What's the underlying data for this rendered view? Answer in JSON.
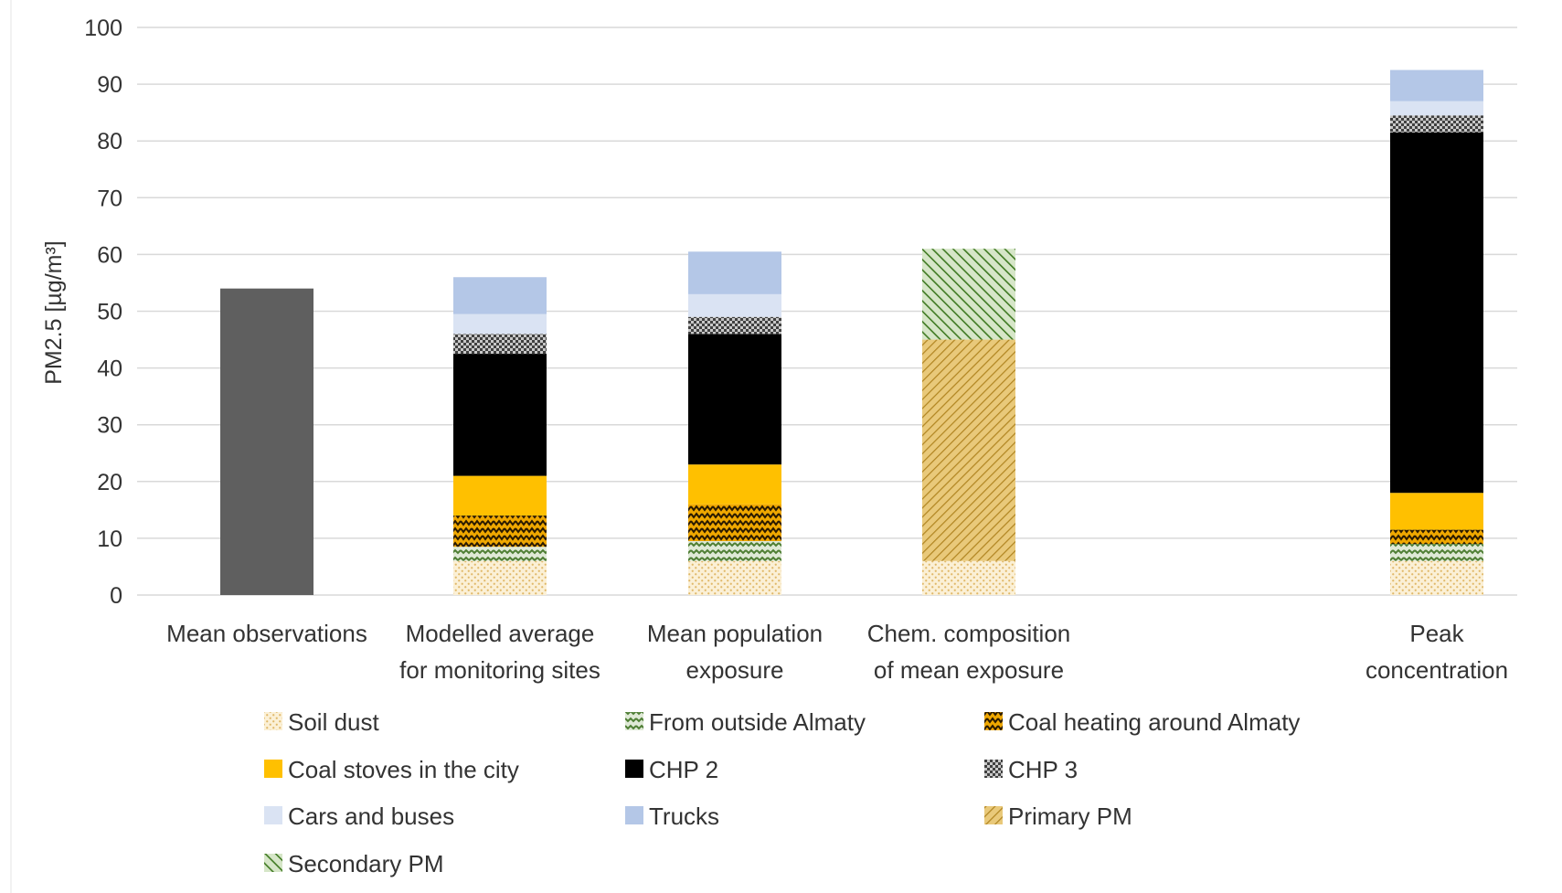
{
  "chart_data": {
    "type": "bar",
    "stacked": true,
    "title": "",
    "xlabel": "",
    "ylabel": "PM2.5 [µg/m³]",
    "ylim": [
      0,
      100
    ],
    "yticks": [
      0,
      10,
      20,
      30,
      40,
      50,
      60,
      70,
      80,
      90,
      100
    ],
    "grid": true,
    "legend_position": "bottom",
    "categories": [
      {
        "lines": [
          "Mean observations"
        ]
      },
      {
        "lines": [
          "Modelled average",
          "for monitoring sites"
        ]
      },
      {
        "lines": [
          "Mean population",
          "exposure"
        ]
      },
      {
        "lines": [
          "Chem. composition",
          "of mean exposure"
        ]
      },
      {
        "lines": [
          "Peak",
          "concentration"
        ]
      }
    ],
    "observations": {
      "category_index": 0,
      "value": 54,
      "color": "#5f5f5f"
    },
    "series": [
      {
        "name": "Soil dust",
        "values": [
          null,
          6,
          6,
          6,
          6
        ]
      },
      {
        "name": "From outside Almaty",
        "values": [
          null,
          2.5,
          3.5,
          null,
          3
        ]
      },
      {
        "name": "Coal heating around Almaty",
        "values": [
          null,
          5.5,
          6.5,
          null,
          2.5
        ]
      },
      {
        "name": "Coal stoves in the city",
        "values": [
          null,
          7,
          7,
          null,
          6.5
        ]
      },
      {
        "name": "CHP 2",
        "values": [
          null,
          21.5,
          23,
          null,
          63.5
        ]
      },
      {
        "name": "CHP 3",
        "values": [
          null,
          3.5,
          3,
          null,
          3
        ]
      },
      {
        "name": "Cars and buses",
        "values": [
          null,
          3.5,
          4,
          null,
          2.5
        ]
      },
      {
        "name": "Trucks",
        "values": [
          null,
          6.5,
          7.5,
          null,
          5.5
        ]
      },
      {
        "name": "Primary PM",
        "values": [
          null,
          null,
          null,
          39,
          null
        ]
      },
      {
        "name": "Secondary PM",
        "values": [
          null,
          null,
          null,
          16,
          null
        ]
      }
    ],
    "colors": {
      "soil_dust": "#f5deb0",
      "outside": "#6a9a4a",
      "coal_heating": "#f0a800",
      "coal_stoves": "#ffc000",
      "chp2": "#000000",
      "chp3": "#909090",
      "cars": "#dae3f3",
      "trucks": "#b4c7e7",
      "primary": "#e8b840",
      "secondary": "#4e8a30",
      "grid": "#d9d9d9",
      "observations": "#5f5f5f"
    }
  }
}
